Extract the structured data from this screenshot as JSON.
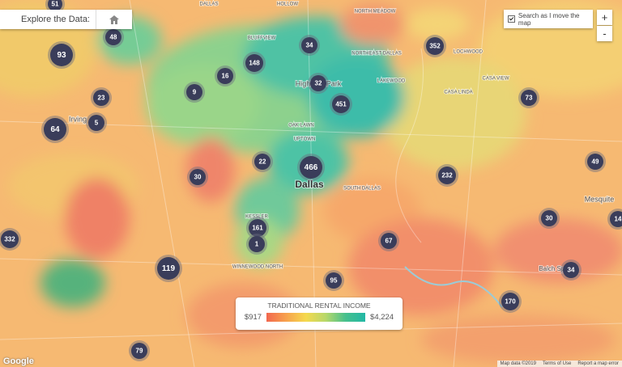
{
  "controls": {
    "explore_label": "Explore the Data:",
    "search_checkbox": "Search as I move the map",
    "zoom_in": "+",
    "zoom_out": "-"
  },
  "legend": {
    "title": "TRADITIONAL RENTAL INCOME",
    "min_label": "$917",
    "max_label": "$4,224"
  },
  "clusters": [
    51,
    48,
    93,
    23,
    5,
    64,
    34,
    148,
    16,
    9,
    32,
    451,
    352,
    73,
    22,
    466,
    30,
    232,
    49,
    161,
    1,
    67,
    30,
    14,
    332,
    119,
    34,
    95,
    170,
    79
  ],
  "place_labels": [
    "DALLAS",
    "HOLLOW",
    "NORTH MEADOW",
    "BLUFFVIEW",
    "NORTHEAST DALLAS",
    "LAKEWOOD",
    "Highland Park",
    "Irving",
    "OAK LAWN",
    "UPTOWN",
    "Dallas",
    "SOUTH DALLAS",
    "LOCHWOOD",
    "CASA VIEW",
    "CASA LINDA",
    "Mesquite",
    "KESSLER",
    "WINNEWOOD NORTH",
    "Balch Springs"
  ],
  "footer": {
    "google": "Google",
    "map_data": "Map data ©2019",
    "terms": "Terms of Use",
    "report": "Report a map error"
  }
}
